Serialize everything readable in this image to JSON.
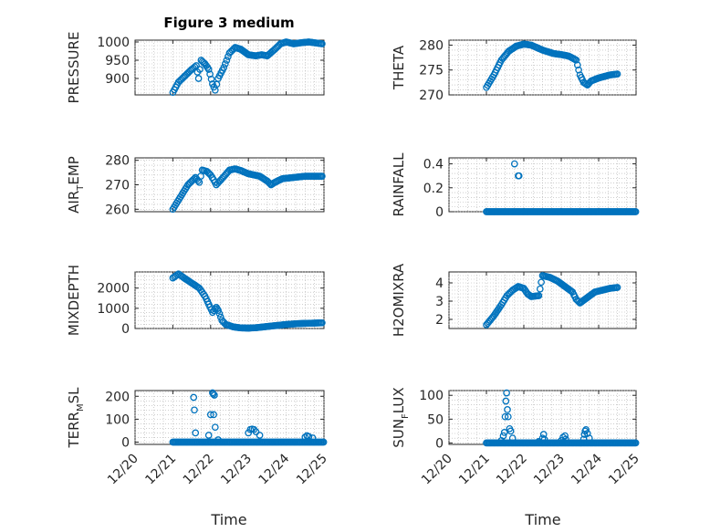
{
  "figure": {
    "title": "Figure 3 medium",
    "xlabel": "Time",
    "marker_color": "#0072BD",
    "x_ticks": [
      "12/20",
      "12/21",
      "12/22",
      "12/23",
      "12/24",
      "12/25"
    ]
  },
  "chart_data": [
    {
      "type": "scatter",
      "ylabel": "PRESSURE",
      "ylabel_main": "PRESSURE",
      "ylabel_sub": "",
      "ylabel_tail": "",
      "x_domain": [
        0,
        5
      ],
      "ylim": [
        855,
        1005
      ],
      "yticks": [
        900,
        950,
        1000
      ],
      "ytick_labels": [
        "900",
        "950",
        "1000"
      ],
      "grid": true,
      "keypoints": [
        [
          1,
          862
        ],
        [
          1.15,
          890
        ],
        [
          1.3,
          905
        ],
        [
          1.5,
          925
        ],
        [
          1.62,
          935
        ],
        [
          1.68,
          900
        ],
        [
          1.75,
          950
        ],
        [
          1.85,
          940
        ],
        [
          1.95,
          925
        ],
        [
          2.05,
          885
        ],
        [
          2.12,
          868
        ],
        [
          2.2,
          900
        ],
        [
          2.35,
          930
        ],
        [
          2.5,
          970
        ],
        [
          2.65,
          985
        ],
        [
          2.8,
          980
        ],
        [
          3.0,
          965
        ],
        [
          3.2,
          962
        ],
        [
          3.35,
          965
        ],
        [
          3.5,
          962
        ],
        [
          3.7,
          980
        ],
        [
          3.85,
          995
        ],
        [
          4.0,
          1000
        ],
        [
          4.2,
          995
        ],
        [
          4.4,
          998
        ],
        [
          4.6,
          1000
        ],
        [
          4.95,
          995
        ]
      ]
    },
    {
      "type": "scatter",
      "ylabel": "THETA",
      "ylabel_main": "THETA",
      "ylabel_sub": "",
      "ylabel_tail": "",
      "x_domain": [
        0,
        5
      ],
      "ylim": [
        270,
        281
      ],
      "yticks": [
        270,
        275,
        280
      ],
      "ytick_labels": [
        "270",
        "275",
        "280"
      ],
      "grid": true,
      "keypoints": [
        [
          1,
          271.5
        ],
        [
          1.2,
          274
        ],
        [
          1.4,
          277
        ],
        [
          1.6,
          278.8
        ],
        [
          1.8,
          279.8
        ],
        [
          2.0,
          280.2
        ],
        [
          2.2,
          280
        ],
        [
          2.5,
          279
        ],
        [
          2.8,
          278.3
        ],
        [
          3.0,
          278.1
        ],
        [
          3.2,
          277.8
        ],
        [
          3.4,
          277
        ],
        [
          3.5,
          274
        ],
        [
          3.6,
          272.5
        ],
        [
          3.7,
          272
        ],
        [
          3.8,
          272.8
        ],
        [
          4.0,
          273.4
        ],
        [
          4.3,
          274
        ],
        [
          4.5,
          274.2
        ]
      ]
    },
    {
      "type": "scatter",
      "ylabel": "AIR_TEMP",
      "ylabel_main": "AIR",
      "ylabel_sub": "T",
      "ylabel_tail": "EMP",
      "x_domain": [
        0,
        5
      ],
      "ylim": [
        259,
        281
      ],
      "yticks": [
        260,
        270,
        280
      ],
      "ytick_labels": [
        "260",
        "270",
        "280"
      ],
      "grid": true,
      "keypoints": [
        [
          1,
          260
        ],
        [
          1.2,
          265
        ],
        [
          1.4,
          270
        ],
        [
          1.6,
          273
        ],
        [
          1.7,
          271
        ],
        [
          1.78,
          276
        ],
        [
          1.9,
          275.5
        ],
        [
          2.0,
          274
        ],
        [
          2.08,
          272
        ],
        [
          2.15,
          270
        ],
        [
          2.3,
          272.5
        ],
        [
          2.5,
          276
        ],
        [
          2.65,
          276.5
        ],
        [
          2.8,
          275.8
        ],
        [
          3.0,
          274.5
        ],
        [
          3.3,
          273.5
        ],
        [
          3.5,
          271.5
        ],
        [
          3.6,
          270
        ],
        [
          3.7,
          271
        ],
        [
          3.9,
          272.5
        ],
        [
          4.2,
          273
        ],
        [
          4.5,
          273.5
        ],
        [
          4.95,
          273.5
        ]
      ]
    },
    {
      "type": "scatter",
      "ylabel": "RAINFALL",
      "ylabel_main": "RAINFALL",
      "ylabel_sub": "",
      "ylabel_tail": "",
      "x_domain": [
        0,
        5
      ],
      "ylim": [
        0,
        0.45
      ],
      "yticks": [
        0,
        0.2,
        0.4
      ],
      "ytick_labels": [
        "0",
        "0.2",
        "0.4"
      ],
      "grid": true,
      "baseline": [
        1,
        5,
        0
      ],
      "extra_points": [
        [
          1.75,
          0.4
        ],
        [
          1.85,
          0.3
        ],
        [
          1.87,
          0.3
        ]
      ]
    },
    {
      "type": "scatter",
      "ylabel": "MIXDEPTH",
      "ylabel_main": "MIXDEPTH",
      "ylabel_sub": "",
      "ylabel_tail": "",
      "x_domain": [
        0,
        5
      ],
      "ylim": [
        0,
        2800
      ],
      "yticks": [
        0,
        1000,
        2000
      ],
      "ytick_labels": [
        "0",
        "1000",
        "2000"
      ],
      "grid": true,
      "keypoints": [
        [
          1,
          2500
        ],
        [
          1.15,
          2700
        ],
        [
          1.3,
          2500
        ],
        [
          1.5,
          2250
        ],
        [
          1.7,
          2000
        ],
        [
          1.85,
          1600
        ],
        [
          1.95,
          1200
        ],
        [
          2.05,
          800
        ],
        [
          2.15,
          1050
        ],
        [
          2.2,
          900
        ],
        [
          2.3,
          400
        ],
        [
          2.4,
          200
        ],
        [
          2.6,
          80
        ],
        [
          2.8,
          30
        ],
        [
          3.0,
          20
        ],
        [
          3.2,
          40
        ],
        [
          3.4,
          80
        ],
        [
          3.6,
          120
        ],
        [
          3.8,
          160
        ],
        [
          4.0,
          200
        ],
        [
          4.3,
          240
        ],
        [
          4.6,
          260
        ],
        [
          4.95,
          280
        ]
      ]
    },
    {
      "type": "scatter",
      "ylabel": "H2OMIXRA",
      "ylabel_main": "H2OMIXRA",
      "ylabel_sub": "",
      "ylabel_tail": "",
      "x_domain": [
        0,
        5
      ],
      "ylim": [
        1.5,
        4.6
      ],
      "yticks": [
        2,
        3,
        4
      ],
      "ytick_labels": [
        "2",
        "3",
        "4"
      ],
      "grid": true,
      "keypoints": [
        [
          1,
          1.7
        ],
        [
          1.2,
          2.2
        ],
        [
          1.4,
          2.8
        ],
        [
          1.55,
          3.3
        ],
        [
          1.7,
          3.6
        ],
        [
          1.85,
          3.8
        ],
        [
          2.0,
          3.7
        ],
        [
          2.1,
          3.4
        ],
        [
          2.2,
          3.25
        ],
        [
          2.4,
          3.3
        ],
        [
          2.5,
          4.4
        ],
        [
          2.7,
          4.3
        ],
        [
          2.9,
          4.1
        ],
        [
          3.1,
          3.8
        ],
        [
          3.3,
          3.5
        ],
        [
          3.4,
          3.1
        ],
        [
          3.5,
          2.9
        ],
        [
          3.7,
          3.2
        ],
        [
          3.9,
          3.5
        ],
        [
          4.1,
          3.6
        ],
        [
          4.3,
          3.7
        ],
        [
          4.5,
          3.75
        ]
      ]
    },
    {
      "type": "scatter",
      "ylabel": "TERR_MSL",
      "ylabel_main": "TERR",
      "ylabel_sub": "M",
      "ylabel_tail": "SL",
      "x_domain": [
        0,
        5
      ],
      "ylim": [
        -10,
        225
      ],
      "yticks": [
        0,
        100,
        200
      ],
      "ytick_labels": [
        "0",
        "100",
        "200"
      ],
      "grid": true,
      "baseline": [
        1,
        5,
        0
      ],
      "extra_points": [
        [
          1.55,
          195
        ],
        [
          1.57,
          140
        ],
        [
          1.6,
          40
        ],
        [
          2.05,
          215
        ],
        [
          2.07,
          210
        ],
        [
          2.1,
          205
        ],
        [
          2.0,
          120
        ],
        [
          2.08,
          120
        ],
        [
          2.12,
          65
        ],
        [
          1.95,
          30
        ],
        [
          2.2,
          10
        ],
        [
          3.0,
          40
        ],
        [
          3.05,
          55
        ],
        [
          3.1,
          57
        ],
        [
          3.15,
          55
        ],
        [
          3.2,
          45
        ],
        [
          3.3,
          30
        ],
        [
          4.5,
          22
        ],
        [
          4.55,
          28
        ],
        [
          4.6,
          24
        ],
        [
          4.7,
          18
        ]
      ]
    },
    {
      "type": "scatter",
      "ylabel": "SUN_FLUX",
      "ylabel_main": "SUN",
      "ylabel_sub": "F",
      "ylabel_tail": "LUX",
      "x_domain": [
        0,
        5
      ],
      "ylim": [
        -3,
        110
      ],
      "yticks": [
        0,
        50,
        100
      ],
      "ytick_labels": [
        "0",
        "50",
        "100"
      ],
      "grid": true,
      "baseline": [
        1,
        5,
        0
      ],
      "extra_points": [
        [
          1.4,
          5
        ],
        [
          1.45,
          15
        ],
        [
          1.48,
          22
        ],
        [
          1.5,
          55
        ],
        [
          1.52,
          88
        ],
        [
          1.54,
          105
        ],
        [
          1.56,
          70
        ],
        [
          1.58,
          55
        ],
        [
          1.62,
          30
        ],
        [
          1.65,
          25
        ],
        [
          1.7,
          10
        ],
        [
          2.4,
          3
        ],
        [
          2.5,
          10
        ],
        [
          2.53,
          18
        ],
        [
          2.55,
          8
        ],
        [
          3.0,
          5
        ],
        [
          3.05,
          12
        ],
        [
          3.1,
          15
        ],
        [
          3.12,
          8
        ],
        [
          3.6,
          8
        ],
        [
          3.62,
          18
        ],
        [
          3.64,
          25
        ],
        [
          3.66,
          28
        ],
        [
          3.7,
          20
        ],
        [
          3.75,
          10
        ]
      ]
    }
  ]
}
